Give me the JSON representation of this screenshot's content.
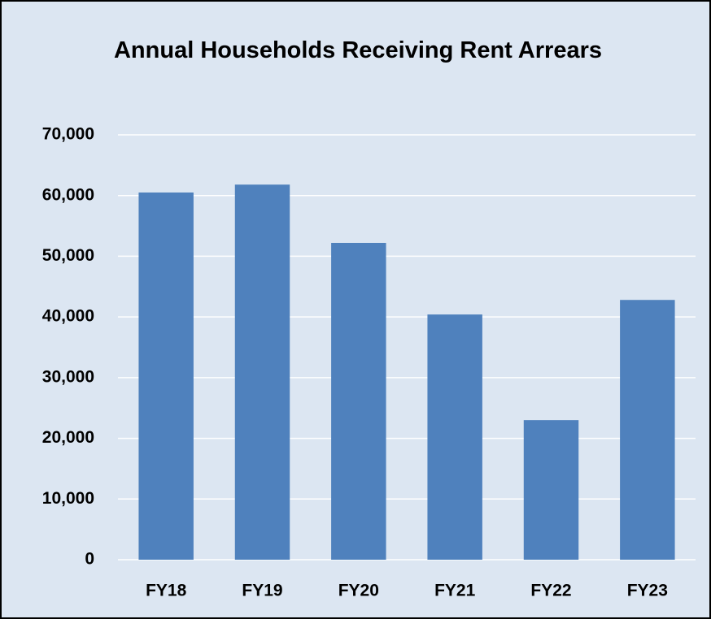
{
  "chart_data": {
    "type": "bar",
    "title": "Annual Households Receiving Rent Arrears",
    "categories": [
      "FY18",
      "FY19",
      "FY20",
      "FY21",
      "FY22",
      "FY23"
    ],
    "values": [
      60500,
      61800,
      52200,
      40400,
      23000,
      42800
    ],
    "color": "#4f81bd",
    "ylim": [
      0,
      70000
    ],
    "yticks": [
      0,
      {
        "value": 10000,
        "label": "10,000"
      },
      {
        "value": 20000,
        "label": "20,000"
      },
      {
        "value": 30000,
        "label": "30,000"
      },
      {
        "value": 40000,
        "label": "40,000"
      },
      {
        "value": 50000,
        "label": "50,000"
      },
      {
        "value": 60000,
        "label": "60,000"
      },
      {
        "value": 70000,
        "label": "70,000"
      }
    ],
    "grid": true
  }
}
